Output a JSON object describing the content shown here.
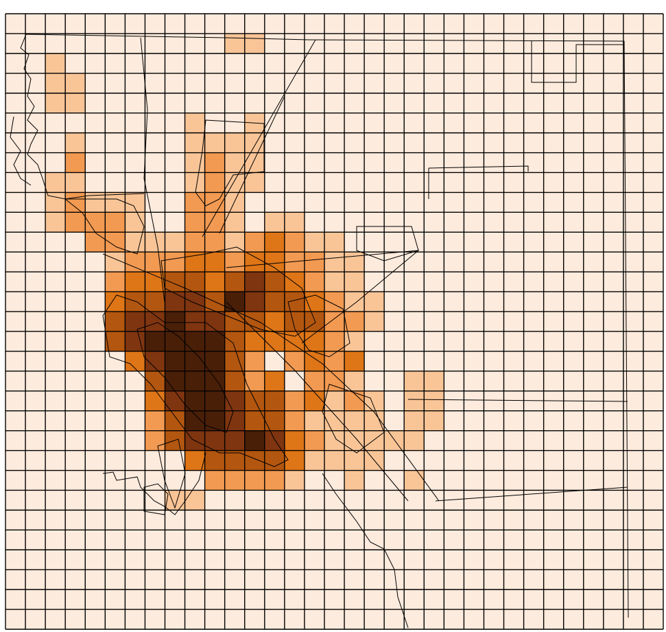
{
  "map": {
    "type": "choropleth-grid",
    "grid": {
      "rows": 31,
      "cols": 33
    },
    "colors": {
      "background": "#ffffff",
      "grid_line": "#000000",
      "boundary_line": "#000000",
      "classes": [
        "#fdebdd",
        "#f9c597",
        "#f29a52",
        "#de7517",
        "#b3560f",
        "#7f3510",
        "#4a1f08"
      ]
    },
    "cells": [
      [
        1,
        11,
        1
      ],
      [
        1,
        12,
        1
      ],
      [
        2,
        2,
        1
      ],
      [
        3,
        2,
        1
      ],
      [
        3,
        3,
        1
      ],
      [
        4,
        2,
        1
      ],
      [
        4,
        3,
        1
      ],
      [
        5,
        9,
        1
      ],
      [
        5,
        12,
        1
      ],
      [
        6,
        9,
        1
      ],
      [
        6,
        10,
        1
      ],
      [
        6,
        11,
        1
      ],
      [
        6,
        12,
        1
      ],
      [
        6,
        3,
        1
      ],
      [
        7,
        3,
        1
      ],
      [
        7,
        9,
        1
      ],
      [
        7,
        10,
        2
      ],
      [
        7,
        11,
        1
      ],
      [
        7,
        12,
        1
      ],
      [
        7,
        3,
        2
      ],
      [
        8,
        2,
        1
      ],
      [
        8,
        3,
        1
      ],
      [
        8,
        9,
        1
      ],
      [
        8,
        10,
        2
      ],
      [
        8,
        11,
        1
      ],
      [
        8,
        12,
        1
      ],
      [
        9,
        2,
        1
      ],
      [
        9,
        3,
        2
      ],
      [
        9,
        4,
        1
      ],
      [
        9,
        5,
        1
      ],
      [
        9,
        6,
        1
      ],
      [
        9,
        9,
        2
      ],
      [
        9,
        10,
        2
      ],
      [
        9,
        11,
        1
      ],
      [
        10,
        2,
        1
      ],
      [
        10,
        3,
        2
      ],
      [
        10,
        4,
        2
      ],
      [
        10,
        5,
        2
      ],
      [
        10,
        6,
        1
      ],
      [
        10,
        9,
        2
      ],
      [
        10,
        10,
        2
      ],
      [
        10,
        11,
        1
      ],
      [
        10,
        13,
        1
      ],
      [
        10,
        14,
        1
      ],
      [
        11,
        4,
        2
      ],
      [
        11,
        5,
        2
      ],
      [
        11,
        6,
        1
      ],
      [
        11,
        7,
        1
      ],
      [
        11,
        8,
        1
      ],
      [
        11,
        9,
        2
      ],
      [
        11,
        10,
        2
      ],
      [
        11,
        11,
        1
      ],
      [
        11,
        12,
        2
      ],
      [
        11,
        13,
        3
      ],
      [
        11,
        14,
        2
      ],
      [
        11,
        15,
        1
      ],
      [
        11,
        16,
        1
      ],
      [
        12,
        5,
        1
      ],
      [
        12,
        6,
        2
      ],
      [
        12,
        7,
        2
      ],
      [
        12,
        8,
        2
      ],
      [
        12,
        9,
        3
      ],
      [
        12,
        10,
        3
      ],
      [
        12,
        11,
        2
      ],
      [
        12,
        12,
        3
      ],
      [
        12,
        13,
        3
      ],
      [
        12,
        14,
        2
      ],
      [
        12,
        15,
        2
      ],
      [
        12,
        16,
        1
      ],
      [
        12,
        17,
        1
      ],
      [
        13,
        5,
        2
      ],
      [
        13,
        6,
        3
      ],
      [
        13,
        7,
        3
      ],
      [
        13,
        8,
        4
      ],
      [
        13,
        9,
        4
      ],
      [
        13,
        10,
        3
      ],
      [
        13,
        11,
        4
      ],
      [
        13,
        12,
        5
      ],
      [
        13,
        13,
        4
      ],
      [
        13,
        14,
        3
      ],
      [
        13,
        15,
        2
      ],
      [
        13,
        16,
        1
      ],
      [
        13,
        17,
        1
      ],
      [
        14,
        5,
        3
      ],
      [
        14,
        6,
        4
      ],
      [
        14,
        7,
        4
      ],
      [
        14,
        8,
        5
      ],
      [
        14,
        9,
        5
      ],
      [
        14,
        10,
        4
      ],
      [
        14,
        11,
        6
      ],
      [
        14,
        12,
        5
      ],
      [
        14,
        13,
        4
      ],
      [
        14,
        14,
        4
      ],
      [
        14,
        15,
        3
      ],
      [
        14,
        16,
        2
      ],
      [
        14,
        17,
        1
      ],
      [
        14,
        18,
        1
      ],
      [
        15,
        5,
        4
      ],
      [
        15,
        6,
        5
      ],
      [
        15,
        7,
        5
      ],
      [
        15,
        8,
        6
      ],
      [
        15,
        9,
        5
      ],
      [
        15,
        10,
        5
      ],
      [
        15,
        11,
        4
      ],
      [
        15,
        12,
        4
      ],
      [
        15,
        13,
        3
      ],
      [
        15,
        14,
        4
      ],
      [
        15,
        15,
        4
      ],
      [
        15,
        16,
        2
      ],
      [
        15,
        17,
        2
      ],
      [
        15,
        18,
        1
      ],
      [
        16,
        5,
        4
      ],
      [
        16,
        6,
        5
      ],
      [
        16,
        7,
        6
      ],
      [
        16,
        8,
        6
      ],
      [
        16,
        9,
        6
      ],
      [
        16,
        10,
        6
      ],
      [
        16,
        11,
        4
      ],
      [
        16,
        12,
        3
      ],
      [
        16,
        13,
        3
      ],
      [
        16,
        14,
        3
      ],
      [
        16,
        15,
        3
      ],
      [
        16,
        16,
        2
      ],
      [
        16,
        17,
        1
      ],
      [
        17,
        6,
        3
      ],
      [
        17,
        7,
        5
      ],
      [
        17,
        8,
        6
      ],
      [
        17,
        9,
        6
      ],
      [
        17,
        10,
        6
      ],
      [
        17,
        11,
        4
      ],
      [
        17,
        12,
        2
      ],
      [
        17,
        13,
        0
      ],
      [
        17,
        14,
        2
      ],
      [
        17,
        15,
        3
      ],
      [
        17,
        16,
        2
      ],
      [
        17,
        17,
        3
      ],
      [
        18,
        7,
        4
      ],
      [
        18,
        8,
        6
      ],
      [
        18,
        9,
        6
      ],
      [
        18,
        10,
        6
      ],
      [
        18,
        11,
        4
      ],
      [
        18,
        12,
        2
      ],
      [
        18,
        13,
        3
      ],
      [
        18,
        14,
        0
      ],
      [
        18,
        15,
        2
      ],
      [
        18,
        16,
        2
      ],
      [
        18,
        17,
        1
      ],
      [
        18,
        20,
        1
      ],
      [
        18,
        21,
        1
      ],
      [
        19,
        7,
        3
      ],
      [
        19,
        8,
        5
      ],
      [
        19,
        9,
        6
      ],
      [
        19,
        10,
        6
      ],
      [
        19,
        11,
        5
      ],
      [
        19,
        12,
        4
      ],
      [
        19,
        13,
        4
      ],
      [
        19,
        14,
        2
      ],
      [
        19,
        15,
        3
      ],
      [
        19,
        16,
        1
      ],
      [
        19,
        17,
        2
      ],
      [
        19,
        18,
        1
      ],
      [
        19,
        20,
        1
      ],
      [
        19,
        21,
        1
      ],
      [
        20,
        7,
        2
      ],
      [
        20,
        8,
        4
      ],
      [
        20,
        9,
        6
      ],
      [
        20,
        10,
        6
      ],
      [
        20,
        11,
        5
      ],
      [
        20,
        12,
        4
      ],
      [
        20,
        13,
        4
      ],
      [
        20,
        14,
        2
      ],
      [
        20,
        15,
        1
      ],
      [
        20,
        16,
        1
      ],
      [
        20,
        17,
        1
      ],
      [
        20,
        18,
        1
      ],
      [
        20,
        20,
        1
      ],
      [
        20,
        21,
        1
      ],
      [
        21,
        7,
        2
      ],
      [
        21,
        8,
        4
      ],
      [
        21,
        9,
        5
      ],
      [
        21,
        10,
        5
      ],
      [
        21,
        11,
        5
      ],
      [
        21,
        12,
        6
      ],
      [
        21,
        13,
        5
      ],
      [
        21,
        14,
        3
      ],
      [
        21,
        15,
        2
      ],
      [
        21,
        16,
        1
      ],
      [
        21,
        17,
        1
      ],
      [
        21,
        18,
        1
      ],
      [
        21,
        19,
        1
      ],
      [
        21,
        20,
        1
      ],
      [
        22,
        9,
        3
      ],
      [
        22,
        10,
        4
      ],
      [
        22,
        11,
        4
      ],
      [
        22,
        12,
        4
      ],
      [
        22,
        13,
        4
      ],
      [
        22,
        14,
        3
      ],
      [
        22,
        15,
        1
      ],
      [
        22,
        16,
        1
      ],
      [
        22,
        17,
        1
      ],
      [
        22,
        18,
        1
      ],
      [
        23,
        10,
        2
      ],
      [
        23,
        11,
        2
      ],
      [
        23,
        12,
        2
      ],
      [
        23,
        13,
        2
      ],
      [
        23,
        14,
        1
      ],
      [
        23,
        17,
        1
      ],
      [
        23,
        20,
        1
      ],
      [
        24,
        8,
        1
      ],
      [
        24,
        9,
        1
      ]
    ]
  }
}
